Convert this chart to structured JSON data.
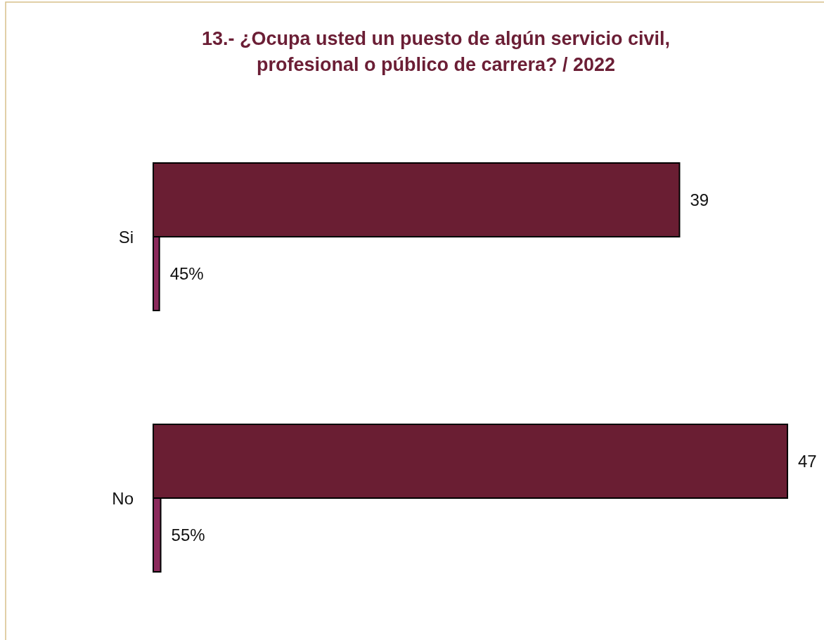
{
  "chart_data": {
    "type": "bar",
    "orientation": "horizontal",
    "title": "13.- ¿Ocupa usted un puesto de algún servicio civil, profesional o público de carrera? / 2022",
    "categories": [
      "Si",
      "No"
    ],
    "series": [
      {
        "color": "#6a1e33",
        "values": [
          39,
          47
        ],
        "value_labels": [
          "39",
          "47"
        ]
      },
      {
        "color": "#8b2a5c",
        "values": [
          0.45,
          0.55
        ],
        "value_labels": [
          "45%",
          "55%"
        ]
      }
    ]
  }
}
